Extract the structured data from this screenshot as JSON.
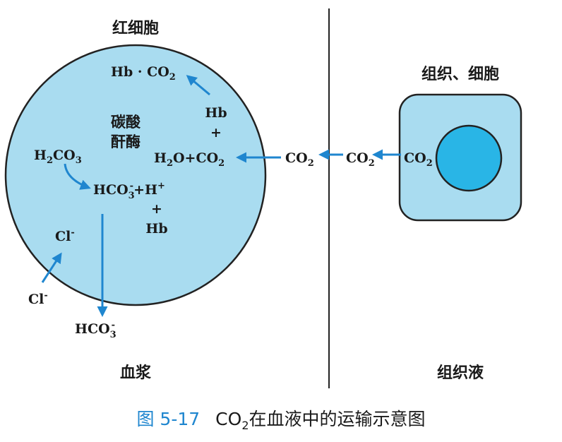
{
  "labels": {
    "rbc": "红细胞",
    "hb_co2_a": "Hb · CO",
    "hb_co2_sub": "2",
    "hb": "Hb",
    "plus1": "+",
    "enzyme_1": "碳酸",
    "enzyme_2": "酐酶",
    "h2co3_a": "H",
    "h2co3_sub": "2",
    "h2co3_b": "CO",
    "h2co3_sub2": "3",
    "h2o_a": "H",
    "h2o_sub": "2",
    "h2o_b": "O+CO",
    "h2o_sub2": "2",
    "hco3_a": "HCO",
    "hco3_sub": "3",
    "hco3_sup": "-",
    "hco3_plus": "+H",
    "h_sup": "+",
    "plus2": "+",
    "hb2": "Hb",
    "cl_in": "Cl",
    "cl_in_sup": "-",
    "cl_out": "Cl",
    "cl_out_sup": "-",
    "hco3_out_a": "HCO",
    "hco3_out_sub": "3",
    "hco3_out_sup": "-",
    "co2_plasma_a": "CO",
    "co2_plasma_sub": "2",
    "co2_fluid_a": "CO",
    "co2_fluid_sub": "2",
    "co2_cell_a": "CO",
    "co2_cell_sub": "2",
    "tissue_cell": "组织、细胞",
    "plasma": "血浆",
    "tissue_fluid": "组织液"
  },
  "caption": {
    "number": "图 5-17",
    "text_a": "CO",
    "text_sub": "2",
    "text_b": "在血液中的运输示意图"
  },
  "colors": {
    "rbc_fill": "#a9dcf0",
    "cell_fill": "#a9dcf0",
    "nucleus_fill": "#29b5e6",
    "arrow": "#1f86cf",
    "accent": "#1f86cf"
  }
}
